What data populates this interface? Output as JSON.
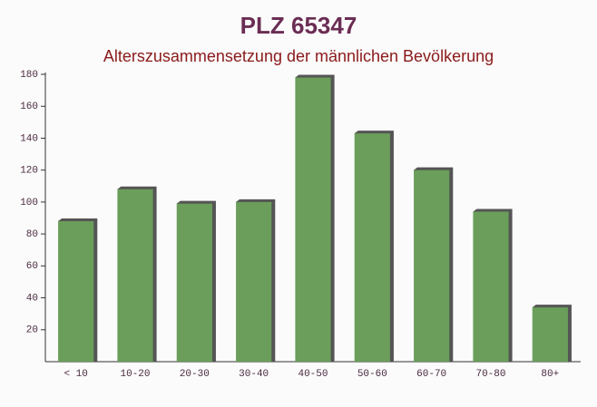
{
  "chart_data": {
    "type": "bar",
    "title": "PLZ 65347",
    "subtitle": "Alterszusammensetzung der männlichen Bevölkerung",
    "categories": [
      "< 10",
      "10-20",
      "20-30",
      "30-40",
      "40-50",
      "50-60",
      "60-70",
      "70-80",
      "80+"
    ],
    "values": [
      88,
      108,
      99,
      100,
      178,
      143,
      120,
      94,
      34
    ],
    "color": "#6a9e5a",
    "ylim": [
      0,
      180
    ],
    "yticks": [
      20,
      40,
      60,
      80,
      100,
      120,
      140,
      160,
      180
    ],
    "grid": false
  }
}
